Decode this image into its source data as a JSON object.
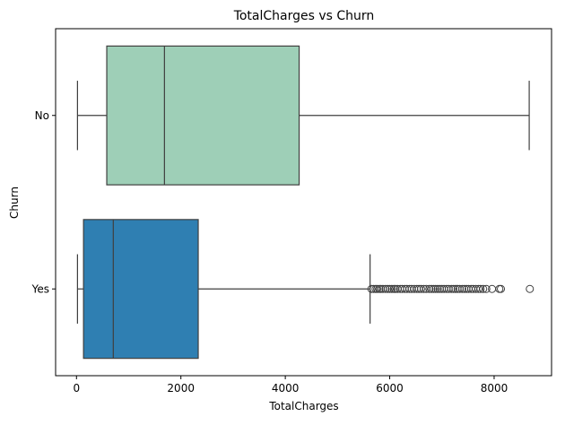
{
  "chart_data": {
    "type": "boxplot",
    "orientation": "horizontal",
    "title": "TotalCharges vs Churn",
    "xlabel": "TotalCharges",
    "ylabel": "Churn",
    "xlim": [
      -400,
      9100
    ],
    "xticks": [
      0,
      2000,
      4000,
      6000,
      8000
    ],
    "xtick_labels": [
      "0",
      "2000",
      "4000",
      "6000",
      "8000"
    ],
    "grid": false,
    "categories": [
      "No",
      "Yes"
    ],
    "series": [
      {
        "category": "No",
        "color": "#9ecfb7",
        "whisker_low": 19,
        "q1": 580,
        "median": 1685,
        "q3": 4265,
        "whisker_high": 8672,
        "outliers": []
      },
      {
        "category": "Yes",
        "color": "#2f7fb2",
        "whisker_low": 19,
        "q1": 135,
        "median": 705,
        "q3": 2332,
        "whisker_high": 5624,
        "outliers": [
          5650,
          5690,
          5730,
          5760,
          5800,
          5830,
          5870,
          5920,
          5960,
          6000,
          6040,
          6080,
          6110,
          6150,
          6200,
          6240,
          6290,
          6330,
          6380,
          6420,
          6470,
          6520,
          6560,
          6600,
          6650,
          6700,
          6760,
          6800,
          6840,
          6880,
          6920,
          6960,
          7000,
          7040,
          7090,
          7130,
          7180,
          7220,
          7260,
          7300,
          7340,
          7390,
          7430,
          7470,
          7510,
          7560,
          7600,
          7650,
          7700,
          7740,
          7790,
          7850,
          7960,
          8100,
          8130,
          8684
        ]
      }
    ]
  }
}
